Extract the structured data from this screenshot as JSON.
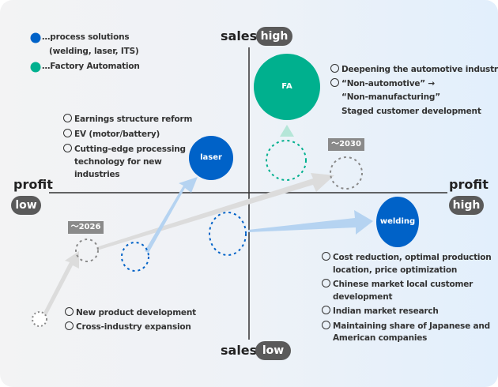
{
  "colors": {
    "process_solutions": "#0062c8",
    "factory_automation": "#00b08e",
    "pill": "#5a5a5a",
    "tag": "#8a8a8a"
  },
  "legend": [
    {
      "icon": "blue-dot",
      "text": "…process solutions",
      "text2": "(welding, laser, ITS)"
    },
    {
      "icon": "teal-dot",
      "text": "…Factory Automation"
    }
  ],
  "axes": {
    "top": {
      "label": "sales",
      "pill": "high"
    },
    "bottom": {
      "label": "sales",
      "pill": "low"
    },
    "left": {
      "label": "profit",
      "pill": "low"
    },
    "right": {
      "label": "profit",
      "pill": "high"
    }
  },
  "bubbles": {
    "fa": "FA",
    "laser": "laser",
    "welding": "welding"
  },
  "tags": {
    "t2026": "～2026",
    "t2030": "～2030"
  },
  "notes": {
    "fa": [
      "Deepening the automotive industry",
      "“Non-automotive” →",
      "“Non-manufacturing”",
      "Staged customer development"
    ],
    "laser": [
      "Earnings structure reform",
      "EV (motor/battery)",
      "Cutting-edge processing",
      "technology for new",
      "industries"
    ],
    "welding": [
      "Cost reduction, optimal production",
      "location, price optimization",
      "Chinese market local customer",
      "development",
      "Indian market research",
      "Maintaining share of Japanese and",
      "American companies"
    ],
    "new": [
      "New product development",
      "Cross-industry expansion"
    ]
  }
}
